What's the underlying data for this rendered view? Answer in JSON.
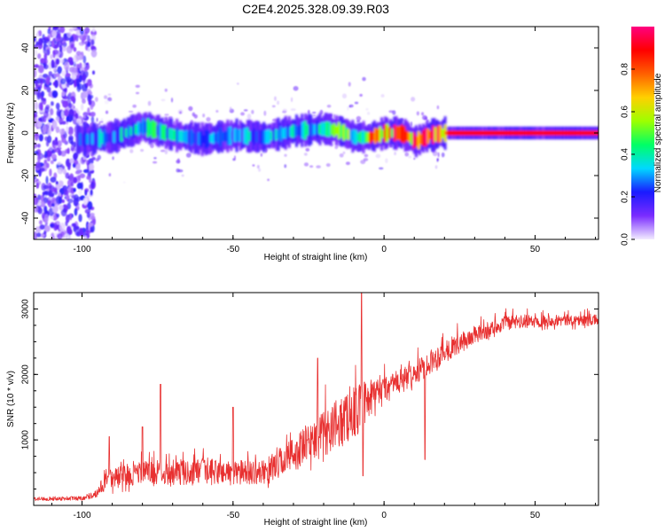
{
  "figure": {
    "title": "C2E4.2025.328.09.39.R03"
  },
  "chart_data": [
    {
      "type": "heatmap",
      "xlabel": "Height of straight line (km)",
      "ylabel": "Frequency (Hz)",
      "xlim": [
        -116,
        71
      ],
      "ylim": [
        -50,
        50
      ],
      "xticks": [
        -100,
        -50,
        0,
        50
      ],
      "yticks": [
        -40,
        -20,
        0,
        20,
        40
      ],
      "grid": false,
      "colorbar": {
        "label": "Normalized spectral amplitude",
        "range": [
          0,
          1
        ],
        "ticks": [
          0.0,
          0.2,
          0.4,
          0.6,
          0.8
        ],
        "tick_labels": [
          "0.0",
          "0.2",
          "0.4",
          "0.6",
          "0.8"
        ],
        "colormap": [
          "#f2ecff",
          "#7a2cff",
          "#1a1aff",
          "#00d8ff",
          "#00ff66",
          "#9dff00",
          "#ffd000",
          "#ff6000",
          "#ff0000",
          "#ff0080"
        ]
      },
      "ridge": {
        "points": [
          {
            "x": -100,
            "y": -3
          },
          {
            "x": -90,
            "y": -2
          },
          {
            "x": -80,
            "y": 3
          },
          {
            "x": -70,
            "y": -1
          },
          {
            "x": -60,
            "y": -3
          },
          {
            "x": -50,
            "y": -1
          },
          {
            "x": -40,
            "y": -2
          },
          {
            "x": -30,
            "y": 1
          },
          {
            "x": -20,
            "y": 2
          },
          {
            "x": -15,
            "y": 1
          },
          {
            "x": -10,
            "y": -2
          },
          {
            "x": -5,
            "y": -2
          },
          {
            "x": 0,
            "y": 0
          },
          {
            "x": 5,
            "y": 0
          },
          {
            "x": 8,
            "y": -2
          },
          {
            "x": 10,
            "y": -4
          },
          {
            "x": 15,
            "y": -1
          },
          {
            "x": 20,
            "y": 0
          },
          {
            "x": 71,
            "y": 0
          }
        ],
        "amplitude": [
          {
            "x": -100,
            "a": 0.25
          },
          {
            "x": -80,
            "a": 0.4
          },
          {
            "x": -60,
            "a": 0.3
          },
          {
            "x": -40,
            "a": 0.3
          },
          {
            "x": -20,
            "a": 0.35
          },
          {
            "x": -10,
            "a": 0.6
          },
          {
            "x": 0,
            "a": 0.85
          },
          {
            "x": 20,
            "a": 0.9
          },
          {
            "x": 71,
            "a": 0.92
          }
        ]
      },
      "noise_region": {
        "x_start": -116,
        "x_end": -100,
        "spread_hz": 50
      }
    },
    {
      "type": "line",
      "xlabel": "Height of straight line (km)",
      "ylabel": "SNR (10 * v/v)",
      "xlim": [
        -116,
        71
      ],
      "ylim": [
        0,
        3250
      ],
      "xticks": [
        -100,
        -50,
        0,
        50
      ],
      "yticks": [
        1000,
        2000,
        3000
      ],
      "grid": false,
      "series": [
        {
          "color": "#e83030",
          "envelope": [
            {
              "x": -116,
              "base": 100,
              "spread": 60
            },
            {
              "x": -100,
              "base": 110,
              "spread": 70
            },
            {
              "x": -95,
              "base": 180,
              "spread": 120
            },
            {
              "x": -92,
              "base": 350,
              "spread": 350
            },
            {
              "x": -80,
              "base": 450,
              "spread": 400
            },
            {
              "x": -60,
              "base": 450,
              "spread": 450
            },
            {
              "x": -40,
              "base": 450,
              "spread": 400
            },
            {
              "x": -30,
              "base": 700,
              "spread": 600
            },
            {
              "x": -20,
              "base": 1000,
              "spread": 800
            },
            {
              "x": -10,
              "base": 1300,
              "spread": 900
            },
            {
              "x": 0,
              "base": 1700,
              "spread": 500
            },
            {
              "x": 10,
              "base": 1950,
              "spread": 400
            },
            {
              "x": 20,
              "base": 2300,
              "spread": 400
            },
            {
              "x": 30,
              "base": 2550,
              "spread": 300
            },
            {
              "x": 40,
              "base": 2750,
              "spread": 250
            },
            {
              "x": 55,
              "base": 2800,
              "spread": 200
            },
            {
              "x": 71,
              "base": 2800,
              "spread": 200
            }
          ],
          "spikes": [
            {
              "x": -91,
              "y": 1050
            },
            {
              "x": -74,
              "y": 1850
            },
            {
              "x": -80,
              "y": 1200
            },
            {
              "x": -50,
              "y": 1500
            },
            {
              "x": -22,
              "y": 2250
            },
            {
              "x": -7.5,
              "y": 3250
            },
            {
              "x": -7,
              "y": 450
            },
            {
              "x": 13.5,
              "y": 700
            }
          ]
        }
      ]
    }
  ]
}
